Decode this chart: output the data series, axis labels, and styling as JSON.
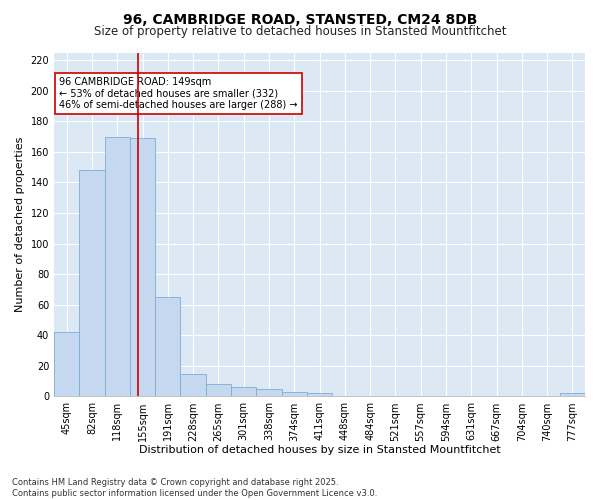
{
  "title": "96, CAMBRIDGE ROAD, STANSTED, CM24 8DB",
  "subtitle": "Size of property relative to detached houses in Stansted Mountfitchet",
  "xlabel": "Distribution of detached houses by size in Stansted Mountfitchet",
  "ylabel": "Number of detached properties",
  "footnote": "Contains HM Land Registry data © Crown copyright and database right 2025.\nContains public sector information licensed under the Open Government Licence v3.0.",
  "bin_labels": [
    "45sqm",
    "82sqm",
    "118sqm",
    "155sqm",
    "191sqm",
    "228sqm",
    "265sqm",
    "301sqm",
    "338sqm",
    "374sqm",
    "411sqm",
    "448sqm",
    "484sqm",
    "521sqm",
    "557sqm",
    "594sqm",
    "631sqm",
    "667sqm",
    "704sqm",
    "740sqm",
    "777sqm"
  ],
  "bar_heights": [
    42,
    148,
    170,
    169,
    65,
    15,
    8,
    6,
    5,
    3,
    2,
    0,
    0,
    0,
    0,
    0,
    0,
    0,
    0,
    0,
    2
  ],
  "bar_color": "#c5d8f0",
  "bar_edge_color": "#7aadd4",
  "vline_index": 2.7,
  "vline_color": "#cc0000",
  "annotation_text": "96 CAMBRIDGE ROAD: 149sqm\n← 53% of detached houses are smaller (332)\n46% of semi-detached houses are larger (288) →",
  "annotation_box_color": "white",
  "annotation_box_edge": "#cc0000",
  "ylim": [
    0,
    225
  ],
  "yticks": [
    0,
    20,
    40,
    60,
    80,
    100,
    120,
    140,
    160,
    180,
    200,
    220
  ],
  "fig_bg_color": "#ffffff",
  "plot_bg_color": "#dce9f5",
  "grid_color": "#ffffff",
  "title_fontsize": 10,
  "subtitle_fontsize": 8.5,
  "label_fontsize": 8,
  "tick_fontsize": 7,
  "footnote_fontsize": 6
}
